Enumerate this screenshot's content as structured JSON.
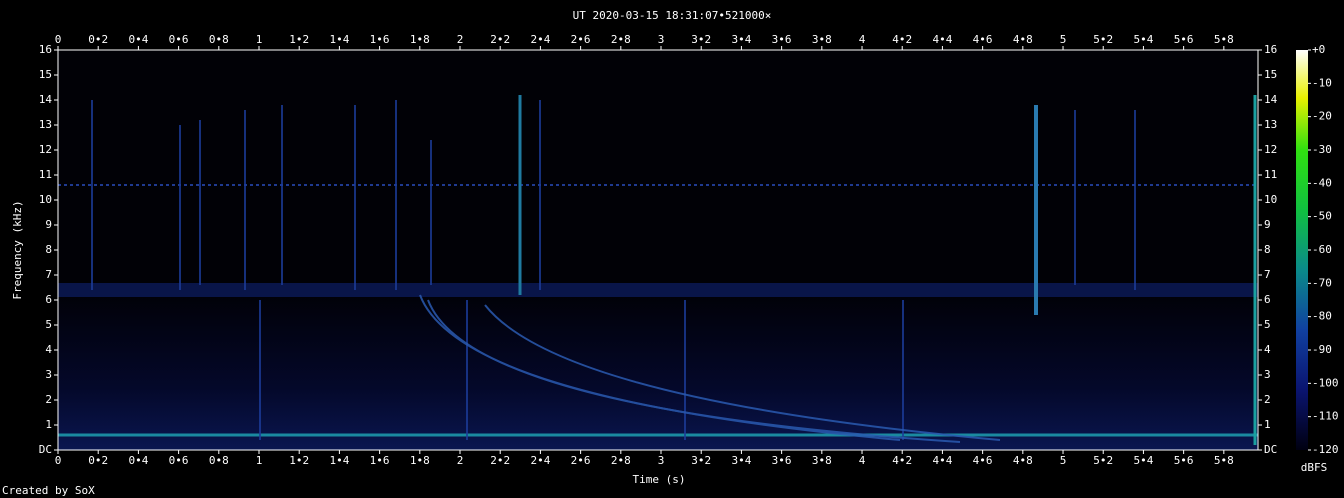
{
  "chart_data": {
    "type": "spectrogram",
    "title": "UT 2020-03-15 18:31:07•521000×",
    "x_label": "Time (s)",
    "y_label": "Frequency (kHz)",
    "colorbar_label": "dBFS",
    "xlim": [
      0,
      5.97
    ],
    "ylim": [
      0,
      16
    ],
    "xticks": [
      0,
      {
        "value": 0.2,
        "label": "0•2"
      },
      {
        "value": 0.4,
        "label": "0•4"
      },
      {
        "value": 0.6,
        "label": "0•6"
      },
      {
        "value": 0.8,
        "label": "0•8"
      },
      1,
      {
        "value": 1.2,
        "label": "1•2"
      },
      {
        "value": 1.4,
        "label": "1•4"
      },
      {
        "value": 1.6,
        "label": "1•6"
      },
      {
        "value": 1.8,
        "label": "1•8"
      },
      2,
      {
        "value": 2.2,
        "label": "2•2"
      },
      {
        "value": 2.4,
        "label": "2•4"
      },
      {
        "value": 2.6,
        "label": "2•6"
      },
      {
        "value": 2.8,
        "label": "2•8"
      },
      3,
      {
        "value": 3.2,
        "label": "3•2"
      },
      {
        "value": 3.4,
        "label": "3•4"
      },
      {
        "value": 3.6,
        "label": "3•6"
      },
      {
        "value": 3.8,
        "label": "3•8"
      },
      4,
      {
        "value": 4.2,
        "label": "4•2"
      },
      {
        "value": 4.4,
        "label": "4•4"
      },
      {
        "value": 4.6,
        "label": "4•6"
      },
      {
        "value": 4.8,
        "label": "4•8"
      },
      5,
      {
        "value": 5.2,
        "label": "5•2"
      },
      {
        "value": 5.4,
        "label": "5•4"
      },
      {
        "value": 5.6,
        "label": "5•6"
      },
      {
        "value": 5.8,
        "label": "5•8"
      }
    ],
    "yticks": [
      {
        "value": 0,
        "label": "DC"
      },
      1,
      2,
      3,
      4,
      5,
      6,
      7,
      8,
      9,
      10,
      11,
      12,
      13,
      14,
      15,
      16
    ],
    "zlim": [
      -120,
      0
    ],
    "zticks": [
      {
        "value": 0,
        "label": "+0"
      },
      -10,
      -20,
      -30,
      -40,
      -50,
      -60,
      -70,
      -80,
      -90,
      -100,
      -110,
      -120
    ]
  },
  "footer": "Created by SoX"
}
